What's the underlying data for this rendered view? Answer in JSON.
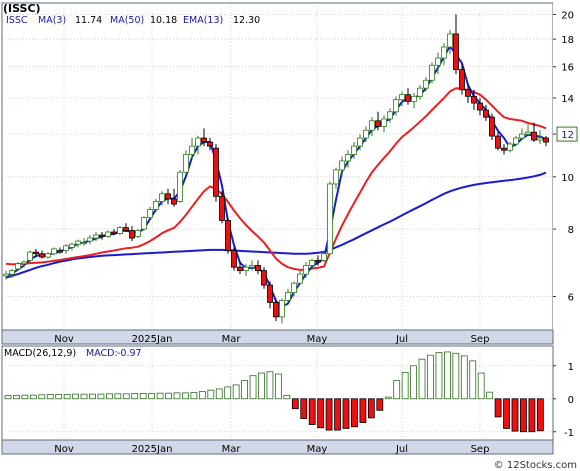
{
  "ticker_tag": "(ISSC)",
  "watermark": "© 12Stocks.com",
  "colors": {
    "frame": "#5f6b80",
    "axis_strip": "#d3d8e8",
    "grid": "#b8b8b8",
    "candle_up": "#2e7d1e",
    "candle_down": "#e81616",
    "candle_down_body": "#ee1010",
    "ma3_fill": "#6060c0",
    "ma50": "#1a1ad0",
    "ema13": "#e82020",
    "macd_bar": "#2e6e1e",
    "macd_neg": "#ee1010",
    "price_text": "#1a1aa0",
    "label_green": "#2e7d1e"
  },
  "chart_data": [
    {
      "type": "candlestick",
      "legend": {
        "symbol": "ISSC",
        "items": [
          {
            "label": "MA(3)",
            "value": "11.74"
          },
          {
            "label": "MA(50)",
            "value": "10.18"
          },
          {
            "label": "EMA(13)",
            "value": "12.30"
          }
        ]
      },
      "y_scale": "log",
      "ylim": [
        5.2,
        21
      ],
      "y_ticks": [
        "6",
        "8",
        "10",
        "12",
        "14",
        "16",
        "18",
        "20"
      ],
      "x_ticks": [
        "Nov",
        "2025Jan",
        "Mar",
        "May",
        "Jul",
        "Sep"
      ],
      "last_price": "12",
      "grid": true,
      "candles": [
        [
          6.55,
          6.7,
          6.45,
          6.6
        ],
        [
          6.6,
          6.75,
          6.5,
          6.7
        ],
        [
          6.75,
          6.95,
          6.7,
          6.9
        ],
        [
          6.9,
          7.0,
          6.8,
          6.95
        ],
        [
          7.0,
          7.3,
          6.95,
          7.25
        ],
        [
          7.25,
          7.35,
          7.1,
          7.2
        ],
        [
          7.2,
          7.3,
          7.05,
          7.1
        ],
        [
          7.1,
          7.25,
          7.05,
          7.2
        ],
        [
          7.2,
          7.4,
          7.15,
          7.35
        ],
        [
          7.3,
          7.4,
          7.2,
          7.25
        ],
        [
          7.3,
          7.5,
          7.2,
          7.45
        ],
        [
          7.4,
          7.55,
          7.3,
          7.5
        ],
        [
          7.5,
          7.65,
          7.4,
          7.6
        ],
        [
          7.55,
          7.7,
          7.45,
          7.55
        ],
        [
          7.6,
          7.8,
          7.5,
          7.7
        ],
        [
          7.7,
          7.9,
          7.6,
          7.8
        ],
        [
          7.8,
          7.9,
          7.65,
          7.75
        ],
        [
          7.75,
          7.95,
          7.7,
          7.9
        ],
        [
          7.9,
          8.0,
          7.8,
          7.85
        ],
        [
          7.85,
          8.1,
          7.8,
          8.05
        ],
        [
          8.05,
          8.2,
          7.9,
          7.95
        ],
        [
          7.95,
          8.1,
          7.6,
          7.7
        ],
        [
          7.75,
          8.0,
          7.7,
          7.95
        ],
        [
          8.0,
          8.45,
          7.95,
          8.4
        ],
        [
          8.4,
          8.8,
          8.35,
          8.7
        ],
        [
          8.7,
          9.1,
          8.6,
          9.0
        ],
        [
          9.0,
          9.4,
          8.85,
          9.3
        ],
        [
          9.3,
          9.5,
          8.9,
          9.1
        ],
        [
          9.1,
          9.5,
          8.8,
          8.9
        ],
        [
          9.0,
          10.3,
          8.95,
          10.2
        ],
        [
          10.2,
          11.2,
          10.1,
          11.0
        ],
        [
          11.0,
          11.8,
          10.8,
          11.4
        ],
        [
          11.4,
          11.9,
          11.0,
          11.8
        ],
        [
          11.8,
          12.3,
          11.4,
          11.6
        ],
        [
          11.6,
          11.8,
          11.2,
          11.4
        ],
        [
          11.3,
          11.5,
          9.0,
          9.2
        ],
        [
          9.2,
          9.4,
          8.2,
          8.3
        ],
        [
          8.3,
          8.4,
          7.2,
          7.3
        ],
        [
          7.3,
          7.4,
          6.7,
          6.8
        ],
        [
          6.8,
          6.95,
          6.6,
          6.7
        ],
        [
          6.7,
          6.9,
          6.55,
          6.8
        ],
        [
          6.8,
          7.0,
          6.7,
          6.85
        ],
        [
          6.85,
          7.0,
          6.6,
          6.7
        ],
        [
          6.7,
          6.8,
          6.2,
          6.3
        ],
        [
          6.3,
          6.4,
          5.7,
          5.85
        ],
        [
          5.85,
          5.95,
          5.4,
          5.5
        ],
        [
          5.5,
          5.95,
          5.35,
          5.9
        ],
        [
          5.9,
          6.2,
          5.85,
          6.1
        ],
        [
          6.1,
          6.4,
          6.0,
          6.35
        ],
        [
          6.35,
          6.7,
          6.3,
          6.6
        ],
        [
          6.6,
          6.95,
          6.5,
          6.85
        ],
        [
          6.85,
          7.05,
          6.75,
          7.0
        ],
        [
          7.0,
          7.15,
          6.85,
          6.95
        ],
        [
          7.0,
          7.3,
          6.95,
          7.2
        ],
        [
          7.2,
          9.8,
          7.15,
          9.7
        ],
        [
          9.7,
          10.4,
          9.5,
          10.3
        ],
        [
          10.3,
          10.9,
          10.0,
          10.7
        ],
        [
          10.7,
          11.2,
          10.4,
          11.0
        ],
        [
          11.0,
          11.6,
          10.8,
          11.4
        ],
        [
          11.4,
          12.0,
          11.2,
          11.8
        ],
        [
          11.8,
          12.4,
          11.6,
          12.2
        ],
        [
          12.2,
          12.9,
          11.9,
          12.7
        ],
        [
          12.7,
          13.2,
          12.2,
          12.4
        ],
        [
          12.4,
          13.0,
          12.1,
          12.8
        ],
        [
          12.8,
          13.4,
          12.6,
          13.2
        ],
        [
          13.2,
          14.1,
          13.0,
          13.9
        ],
        [
          13.9,
          14.4,
          13.5,
          14.2
        ],
        [
          14.2,
          14.6,
          13.6,
          13.8
        ],
        [
          13.8,
          14.3,
          13.4,
          14.1
        ],
        [
          14.1,
          14.8,
          13.9,
          14.6
        ],
        [
          14.6,
          15.3,
          14.4,
          15.1
        ],
        [
          15.1,
          16.3,
          14.9,
          16.1
        ],
        [
          16.1,
          17.0,
          15.5,
          16.6
        ],
        [
          16.6,
          17.7,
          16.1,
          17.4
        ],
        [
          17.4,
          18.7,
          16.9,
          18.4
        ],
        [
          18.4,
          20.0,
          15.5,
          15.8
        ],
        [
          15.8,
          16.2,
          14.2,
          14.5
        ],
        [
          14.5,
          14.9,
          13.7,
          14.1
        ],
        [
          14.1,
          14.5,
          13.3,
          13.7
        ],
        [
          13.7,
          14.0,
          13.0,
          13.3
        ],
        [
          13.3,
          13.6,
          12.7,
          12.9
        ],
        [
          12.9,
          13.1,
          11.7,
          11.9
        ],
        [
          11.9,
          12.1,
          11.2,
          11.3
        ],
        [
          11.3,
          11.5,
          11.0,
          11.2
        ],
        [
          11.2,
          11.6,
          11.1,
          11.5
        ],
        [
          11.5,
          11.9,
          11.4,
          11.8
        ],
        [
          11.8,
          12.3,
          11.7,
          12.0
        ],
        [
          12.0,
          12.5,
          11.9,
          12.1
        ],
        [
          12.1,
          12.6,
          11.6,
          11.7
        ],
        [
          11.7,
          12.2,
          11.5,
          11.8
        ],
        [
          11.8,
          11.9,
          11.4,
          11.6
        ]
      ],
      "ema13": [
        6.9,
        6.88,
        6.89,
        6.9,
        6.92,
        6.93,
        6.94,
        6.96,
        6.99,
        7.01,
        7.04,
        7.07,
        7.1,
        7.13,
        7.16,
        7.2,
        7.24,
        7.27,
        7.3,
        7.34,
        7.37,
        7.39,
        7.42,
        7.5,
        7.6,
        7.72,
        7.86,
        7.96,
        8.04,
        8.25,
        8.5,
        8.8,
        9.1,
        9.4,
        9.6,
        9.5,
        9.28,
        8.98,
        8.66,
        8.38,
        8.14,
        7.93,
        7.75,
        7.55,
        7.3,
        7.05,
        6.9,
        6.8,
        6.75,
        6.72,
        6.73,
        6.76,
        6.78,
        6.82,
        7.24,
        7.68,
        8.12,
        8.53,
        8.94,
        9.35,
        9.78,
        10.2,
        10.52,
        10.84,
        11.15,
        11.52,
        11.85,
        12.1,
        12.36,
        12.65,
        12.95,
        13.3,
        13.65,
        14.0,
        14.4,
        14.6,
        14.56,
        14.48,
        14.36,
        14.2,
        13.9,
        13.55,
        13.2,
        12.9,
        12.8,
        12.75,
        12.7,
        12.58,
        12.5,
        12.42,
        12.3
      ],
      "ma3": [
        6.55,
        6.62,
        6.73,
        6.85,
        7.03,
        7.13,
        7.18,
        7.17,
        7.22,
        7.27,
        7.35,
        7.4,
        7.52,
        7.55,
        7.62,
        7.68,
        7.75,
        7.82,
        7.83,
        7.93,
        7.95,
        7.9,
        7.87,
        8.02,
        8.35,
        8.7,
        9.0,
        9.13,
        9.1,
        9.4,
        10.03,
        10.87,
        11.4,
        11.6,
        11.6,
        10.73,
        9.63,
        8.27,
        7.47,
        6.93,
        6.77,
        6.78,
        6.78,
        6.62,
        6.28,
        5.88,
        5.75,
        5.82,
        6.12,
        6.35,
        6.6,
        6.82,
        6.93,
        7.05,
        7.95,
        9.07,
        10.23,
        10.67,
        11.03,
        11.4,
        11.8,
        12.23,
        12.43,
        12.63,
        12.8,
        13.3,
        13.77,
        13.97,
        14.03,
        14.17,
        14.6,
        15.27,
        15.93,
        16.7,
        17.47,
        16.87,
        16.23,
        14.8,
        14.1,
        13.7,
        13.3,
        12.7,
        12.17,
        11.8,
        11.33,
        11.5,
        11.77,
        11.97,
        11.93,
        11.87,
        11.74
      ],
      "ma50": [
        6.5,
        6.55,
        6.6,
        6.66,
        6.72,
        6.78,
        6.83,
        6.87,
        6.92,
        6.96,
        6.99,
        7.03,
        7.06,
        7.08,
        7.1,
        7.12,
        7.14,
        7.15,
        7.16,
        7.17,
        7.18,
        7.19,
        7.2,
        7.21,
        7.22,
        7.23,
        7.24,
        7.25,
        7.26,
        7.27,
        7.28,
        7.29,
        7.3,
        7.31,
        7.32,
        7.32,
        7.32,
        7.31,
        7.3,
        7.29,
        7.28,
        7.27,
        7.26,
        7.25,
        7.24,
        7.23,
        7.22,
        7.21,
        7.2,
        7.2,
        7.2,
        7.21,
        7.23,
        7.26,
        7.32,
        7.4,
        7.48,
        7.57,
        7.66,
        7.76,
        7.86,
        7.96,
        8.06,
        8.16,
        8.26,
        8.37,
        8.48,
        8.6,
        8.71,
        8.82,
        8.94,
        9.06,
        9.18,
        9.3,
        9.4,
        9.48,
        9.55,
        9.61,
        9.66,
        9.7,
        9.74,
        9.77,
        9.8,
        9.83,
        9.86,
        9.89,
        9.93,
        9.97,
        10.02,
        10.08,
        10.18
      ]
    },
    {
      "type": "bar",
      "legend": {
        "items": [
          {
            "label": "MACD(26,12,9)",
            "value": ""
          },
          {
            "label": "MACD:",
            "value": "-0.97"
          }
        ]
      },
      "ylim": [
        -1.25,
        1.6
      ],
      "y_ticks": [
        "1",
        "0",
        "-1"
      ],
      "x_ticks": [
        "Nov",
        "2025Jan",
        "Mar",
        "May",
        "Jul",
        "Sep"
      ],
      "grid": true,
      "values": [
        0.1,
        0.1,
        0.11,
        0.11,
        0.12,
        0.13,
        0.13,
        0.13,
        0.14,
        0.14,
        0.14,
        0.14,
        0.15,
        0.15,
        0.15,
        0.16,
        0.16,
        0.16,
        0.17,
        0.17,
        0.18,
        0.18,
        0.19,
        0.22,
        0.26,
        0.3,
        0.36,
        0.42,
        0.55,
        0.7,
        0.78,
        0.82,
        0.75,
        0.1,
        -0.3,
        -0.6,
        -0.78,
        -0.88,
        -0.95,
        -0.95,
        -0.9,
        -0.85,
        -0.72,
        -0.58,
        -0.35,
        0.05,
        0.55,
        0.8,
        1.0,
        1.2,
        1.32,
        1.4,
        1.42,
        1.38,
        1.3,
        1.15,
        0.78,
        0.2,
        -0.55,
        -0.9,
        -0.98,
        -1.0,
        -1.0,
        -0.97
      ]
    }
  ]
}
